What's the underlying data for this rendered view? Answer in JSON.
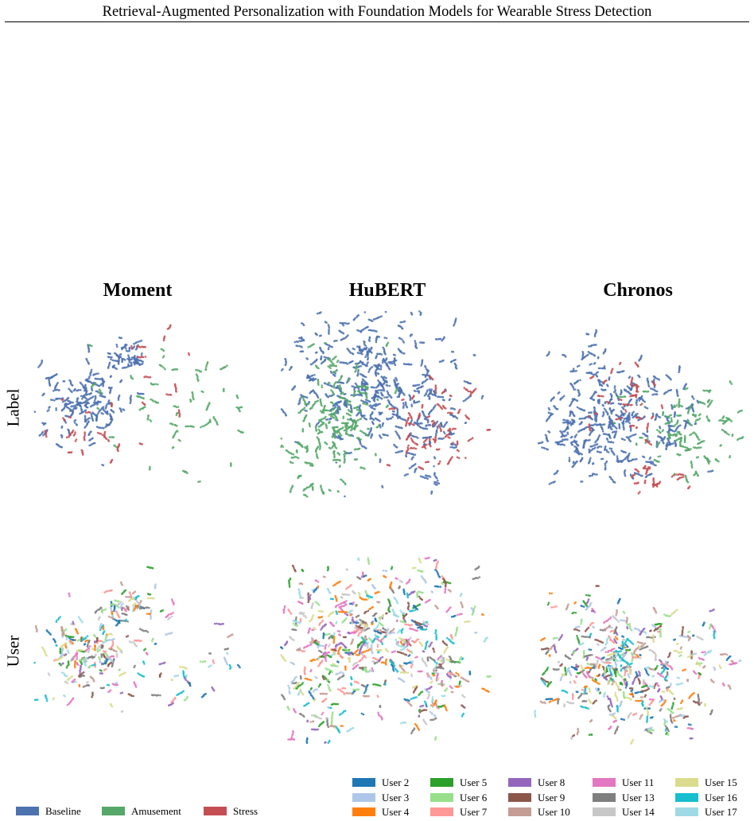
{
  "header": {
    "running_title": "Retrieval-Augmented Personalization with Foundation Models for Wearable Stress Detection"
  },
  "figure": {
    "columns": [
      "Moment",
      "HuBERT",
      "Chronos"
    ],
    "rows": [
      "Label",
      "User"
    ]
  },
  "chart_data": {
    "type": "scatter",
    "panel_type": "embedding projection scatter grid",
    "columns": [
      "Moment",
      "HuBERT",
      "Chronos"
    ],
    "rows": [
      "Label",
      "User"
    ],
    "axes_shown": false,
    "grid": false,
    "label_legend": {
      "placement": "bottom-left",
      "entries": [
        {
          "name": "Baseline",
          "color": "#4c72b0"
        },
        {
          "name": "Amusement",
          "color": "#55a868"
        },
        {
          "name": "Stress",
          "color": "#c44e52"
        }
      ]
    },
    "user_legend": {
      "placement": "bottom-right",
      "entries": [
        {
          "name": "User 2",
          "color": "#1f77b4"
        },
        {
          "name": "User 3",
          "color": "#aec7e8"
        },
        {
          "name": "User 4",
          "color": "#ff7f0e"
        },
        {
          "name": "User 5",
          "color": "#2ca02c"
        },
        {
          "name": "User 6",
          "color": "#98df8a"
        },
        {
          "name": "User 7",
          "color": "#ff9896"
        },
        {
          "name": "User 8",
          "color": "#9467bd"
        },
        {
          "name": "User 9",
          "color": "#8c564b"
        },
        {
          "name": "User 10",
          "color": "#c49c94"
        },
        {
          "name": "User 11",
          "color": "#e377c2"
        },
        {
          "name": "User 13",
          "color": "#7f7f7f"
        },
        {
          "name": "User 14",
          "color": "#c7c7c7"
        },
        {
          "name": "User 15",
          "color": "#dbdb8d"
        },
        {
          "name": "User 16",
          "color": "#17becf"
        },
        {
          "name": "User 17",
          "color": "#9edae5"
        }
      ]
    }
  }
}
